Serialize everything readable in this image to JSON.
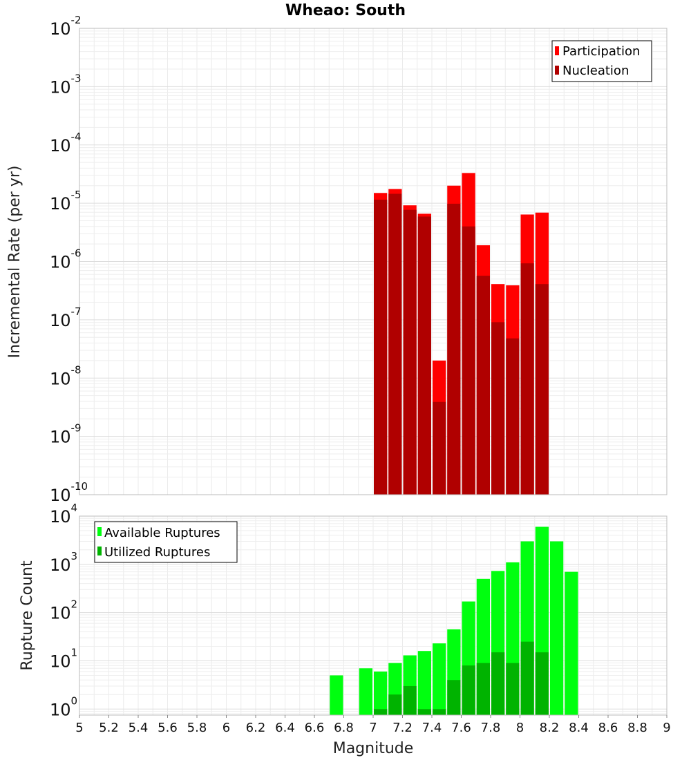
{
  "title": "Wheao: South",
  "xlabel": "Magnitude",
  "chart_data": [
    {
      "type": "bar",
      "scale": "log",
      "title": "Wheao: South",
      "xlabel": "Magnitude",
      "ylabel": "Incremental Rate (per yr)",
      "xlim": [
        5,
        9
      ],
      "ylim": [
        1e-10,
        0.01
      ],
      "x_ticks": [
        "5",
        "5.2",
        "5.4",
        "5.6",
        "5.8",
        "6",
        "6.2",
        "6.4",
        "6.6",
        "6.8",
        "7",
        "7.2",
        "7.4",
        "7.6",
        "7.8",
        "8",
        "8.2",
        "8.4",
        "8.6",
        "8.8",
        "9"
      ],
      "y_ticks": [
        {
          "base": "10",
          "exp": "-10",
          "value": 1e-10
        },
        {
          "base": "10",
          "exp": "-9",
          "value": 1e-09
        },
        {
          "base": "10",
          "exp": "-8",
          "value": 1e-08
        },
        {
          "base": "10",
          "exp": "-7",
          "value": 1e-07
        },
        {
          "base": "10",
          "exp": "-6",
          "value": 1e-06
        },
        {
          "base": "10",
          "exp": "-5",
          "value": 1e-05
        },
        {
          "base": "10",
          "exp": "-4",
          "value": 0.0001
        },
        {
          "base": "10",
          "exp": "-3",
          "value": 0.001
        },
        {
          "base": "10",
          "exp": "-2",
          "value": 0.01
        }
      ],
      "legend_position": "top-right",
      "x": [
        7.05,
        7.15,
        7.25,
        7.35,
        7.45,
        7.55,
        7.65,
        7.75,
        7.85,
        7.95,
        8.05,
        8.15
      ],
      "series": [
        {
          "name": "Participation",
          "color": "#ff0000",
          "values": [
            1.5e-05,
            1.75e-05,
            9.2e-06,
            6.6e-06,
            2e-08,
            2e-05,
            3.3e-05,
            1.9e-06,
            4.1e-07,
            3.9e-07,
            6.4e-06,
            6.9e-06
          ]
        },
        {
          "name": "Nucleation",
          "color": "#b00000",
          "values": [
            1.15e-05,
            1.45e-05,
            7.7e-06,
            5.9e-06,
            3.9e-09,
            9.8e-06,
            4e-06,
            5.7e-07,
            9.1e-08,
            4.8e-08,
            9.3e-07,
            4.1e-07
          ]
        }
      ]
    },
    {
      "type": "bar",
      "scale": "log",
      "ylabel": "Rupture Count",
      "xlabel": "Magnitude",
      "xlim": [
        5,
        9
      ],
      "ylim": [
        0.75,
        10000
      ],
      "y_ticks": [
        {
          "base": "10",
          "exp": "0",
          "value": 1
        },
        {
          "base": "10",
          "exp": "1",
          "value": 10
        },
        {
          "base": "10",
          "exp": "2",
          "value": 100
        },
        {
          "base": "10",
          "exp": "3",
          "value": 1000
        },
        {
          "base": "10",
          "exp": "4",
          "value": 10000
        }
      ],
      "legend_position": "top-left",
      "series": [
        {
          "name": "Available Ruptures",
          "color": "#00ff0f",
          "x": [
            6.75,
            6.95,
            7.05,
            7.15,
            7.25,
            7.35,
            7.45,
            7.55,
            7.65,
            7.75,
            7.85,
            7.95,
            8.05,
            8.15,
            8.25,
            8.35
          ],
          "values": [
            5,
            7,
            6,
            9,
            13,
            16,
            23,
            45,
            170,
            500,
            730,
            1100,
            3000,
            6000,
            3000,
            700
          ]
        },
        {
          "name": "Utilized Ruptures",
          "color": "#00b300",
          "x": [
            7.05,
            7.15,
            7.25,
            7.35,
            7.45,
            7.55,
            7.65,
            7.75,
            7.85,
            7.95,
            8.05,
            8.15
          ],
          "values": [
            1,
            2,
            3,
            1,
            1,
            4,
            8,
            9,
            15,
            9,
            25,
            15
          ]
        }
      ]
    }
  ]
}
